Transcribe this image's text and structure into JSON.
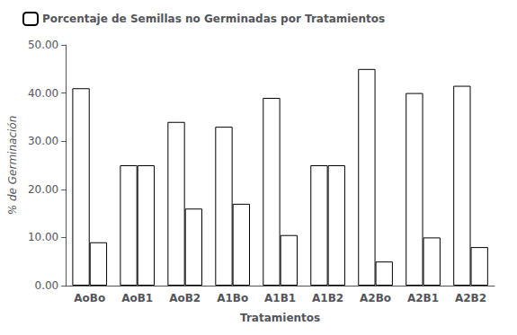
{
  "chart_data": {
    "type": "bar",
    "categories": [
      "AoBo",
      "AoB1",
      "AoB2",
      "A1Bo",
      "A1B1",
      "A1B2",
      "A2Bo",
      "A2B1",
      "A2B2"
    ],
    "series": [
      {
        "name": "Porcentaje de Semillas no Germinadas por Tratamientos",
        "color": "#ffffff",
        "values": [
          41.0,
          25.0,
          34.0,
          33.0,
          39.0,
          25.0,
          45.0,
          40.0,
          41.5
        ]
      },
      {
        "color": "#ffffff",
        "values": [
          9.0,
          25.0,
          16.0,
          17.0,
          10.5,
          25.0,
          5.0,
          10.0,
          8.0
        ]
      }
    ],
    "xlabel": "Tratamientos",
    "ylabel": "% de Germinación",
    "ylim": [
      0,
      50
    ],
    "yticks": [
      {
        "value": 0,
        "label": "0.00"
      },
      {
        "value": 10,
        "label": "10.00"
      },
      {
        "value": 20,
        "label": "20.00"
      },
      {
        "value": 30,
        "label": "30.00"
      },
      {
        "value": 40,
        "label": "40.00"
      },
      {
        "value": 50,
        "label": "50.00"
      }
    ],
    "grid": false,
    "legend": "upper left"
  }
}
